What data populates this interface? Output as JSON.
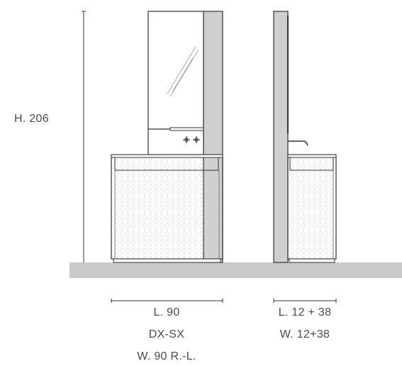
{
  "dimensions": {
    "height": "H. 206",
    "front_width": "L. 90",
    "front_side": "DX-SX",
    "front_variant": "W. 90 R.-L.",
    "side_width": "L. 12 + 38",
    "side_depth": "W. 12+38"
  },
  "colors": {
    "stroke": "#333333",
    "floor": "#c9c9c9",
    "panel": "#cfcfcf",
    "text": "#4a4a4a"
  }
}
